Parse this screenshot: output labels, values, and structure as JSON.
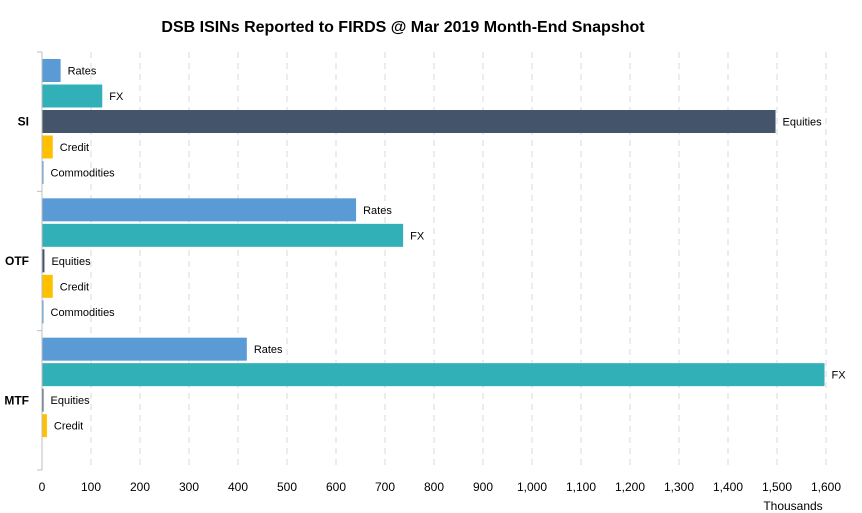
{
  "chart_data": {
    "type": "bar",
    "orientation": "horizontal",
    "title": "DSB ISINs Reported to FIRDS @ Mar 2019 Month-End Snapshot",
    "unit_label": "Thousands",
    "xlim": [
      0,
      1600
    ],
    "x_ticks": [
      "0",
      "100",
      "200",
      "300",
      "400",
      "500",
      "600",
      "700",
      "800",
      "900",
      "1,000",
      "1,100",
      "1,200",
      "1,300",
      "1,400",
      "1,500",
      "1,600"
    ],
    "grid": "vertical dashed",
    "colors": {
      "Rates": "#5b9bd5",
      "FX": "#32b0b8",
      "Equities": "#44546a",
      "Credit": "#ffc000",
      "Commodities": "#5b9bd5"
    },
    "groups": [
      {
        "category": "SI",
        "bars": [
          {
            "label": "Rates",
            "value": 38
          },
          {
            "label": "FX",
            "value": 123
          },
          {
            "label": "Equities",
            "value": 1497
          },
          {
            "label": "Credit",
            "value": 22
          },
          {
            "label": "Commodities",
            "value": 3
          }
        ]
      },
      {
        "category": "OTF",
        "bars": [
          {
            "label": "Rates",
            "value": 641
          },
          {
            "label": "FX",
            "value": 737
          },
          {
            "label": "Equities",
            "value": 5
          },
          {
            "label": "Credit",
            "value": 22
          },
          {
            "label": "Commodities",
            "value": 2
          }
        ]
      },
      {
        "category": "MTF",
        "bars": [
          {
            "label": "Rates",
            "value": 418
          },
          {
            "label": "FX",
            "value": 1597
          },
          {
            "label": "Equities",
            "value": 3
          },
          {
            "label": "Credit",
            "value": 10
          }
        ]
      }
    ]
  }
}
